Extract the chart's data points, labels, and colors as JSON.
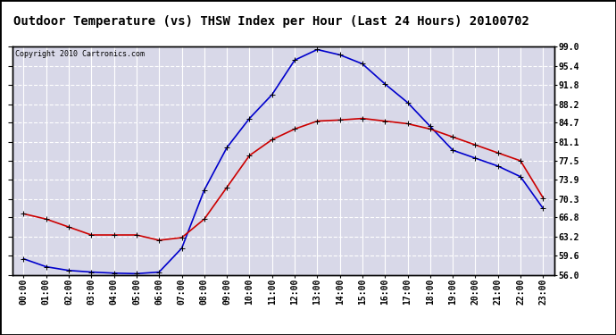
{
  "title": "Outdoor Temperature (vs) THSW Index per Hour (Last 24 Hours) 20100702",
  "copyright": "Copyright 2010 Cartronics.com",
  "hours": [
    "00:00",
    "01:00",
    "02:00",
    "03:00",
    "04:00",
    "05:00",
    "06:00",
    "07:00",
    "08:00",
    "09:00",
    "10:00",
    "11:00",
    "12:00",
    "13:00",
    "14:00",
    "15:00",
    "16:00",
    "17:00",
    "18:00",
    "19:00",
    "20:00",
    "21:00",
    "22:00",
    "23:00"
  ],
  "thsw": [
    59.0,
    57.5,
    56.8,
    56.5,
    56.3,
    56.2,
    56.5,
    61.0,
    72.0,
    80.0,
    85.5,
    90.0,
    96.5,
    98.5,
    97.5,
    95.8,
    92.0,
    88.5,
    84.0,
    79.5,
    78.0,
    76.5,
    74.5,
    68.5
  ],
  "temp": [
    67.5,
    66.5,
    65.0,
    63.5,
    63.5,
    63.5,
    62.5,
    63.0,
    66.5,
    72.5,
    78.5,
    81.5,
    83.5,
    85.0,
    85.2,
    85.5,
    85.0,
    84.5,
    83.5,
    82.0,
    80.5,
    79.0,
    77.5,
    70.5
  ],
  "thsw_color": "#0000cc",
  "temp_color": "#cc0000",
  "bg_color": "#ffffff",
  "plot_bg_color": "#d8d8e8",
  "grid_color": "#ffffff",
  "border_color": "#000000",
  "ymin": 56.0,
  "ymax": 99.0,
  "yticks": [
    56.0,
    59.6,
    63.2,
    66.8,
    70.3,
    73.9,
    77.5,
    81.1,
    84.7,
    88.2,
    91.8,
    95.4,
    99.0
  ],
  "title_fontsize": 10,
  "copyright_fontsize": 6,
  "tick_fontsize": 7,
  "marker": "+",
  "marker_size": 4,
  "linewidth": 1.2
}
